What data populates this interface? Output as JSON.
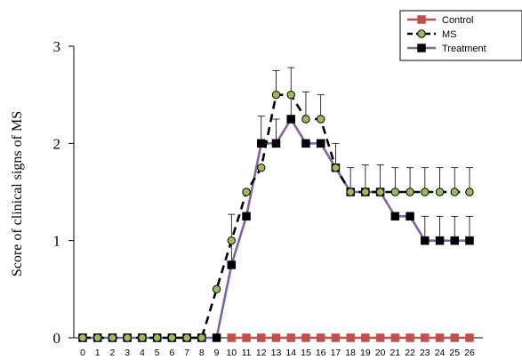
{
  "chart_data": {
    "type": "line",
    "title": "",
    "xlabel": "",
    "ylabel": "Score of clinical signs of MS",
    "xlim": [
      0,
      26
    ],
    "ylim": [
      0,
      3
    ],
    "y_ticks": [
      "0",
      "1",
      "2",
      "3"
    ],
    "x_ticks": [
      "0",
      "1",
      "2",
      "3",
      "4",
      "5",
      "6",
      "7",
      "8",
      "9",
      "10",
      "11",
      "12",
      "13",
      "14",
      "15",
      "16",
      "17",
      "18",
      "19",
      "20",
      "21",
      "22",
      "23",
      "24",
      "25",
      "26"
    ],
    "grid": false,
    "legend_position": "top-right",
    "series": [
      {
        "name": "Control",
        "color": "#c0504d",
        "marker": "square",
        "line_style": "solid",
        "x": [
          10,
          11,
          12,
          13,
          14,
          15,
          16,
          17,
          18,
          19,
          20,
          21,
          22,
          23,
          24,
          25,
          26
        ],
        "y": [
          0,
          0,
          0,
          0,
          0,
          0,
          0,
          0,
          0,
          0,
          0,
          0,
          0,
          0,
          0,
          0,
          0
        ],
        "error": []
      },
      {
        "name": "MS",
        "color": "#000000",
        "marker_fill": "#9bbb59",
        "marker": "circle",
        "line_style": "dashed",
        "x": [
          0,
          1,
          2,
          3,
          4,
          5,
          6,
          7,
          8,
          9,
          10,
          11,
          12,
          13,
          14,
          15,
          16,
          17,
          18,
          19,
          20,
          21,
          22,
          23,
          24,
          25,
          26
        ],
        "y": [
          0,
          0,
          0,
          0,
          0,
          0,
          0,
          0,
          0,
          0.5,
          1,
          1.5,
          1.75,
          2.5,
          2.5,
          2.25,
          2.25,
          1.75,
          1.5,
          1.5,
          1.5,
          1.5,
          1.5,
          1.5,
          1.5,
          1.5,
          1.5
        ],
        "error": [
          0,
          0,
          0,
          0,
          0,
          0,
          0,
          0,
          0,
          0,
          0,
          0,
          0,
          0.25,
          0.28,
          0.28,
          0.25,
          0.25,
          0.25,
          0.28,
          0.28,
          0.25,
          0.25,
          0.25,
          0.25,
          0.25,
          0.25
        ]
      },
      {
        "name": "Treatment",
        "color": "#8064a2",
        "marker_fill": "#000000",
        "marker": "square",
        "line_style": "solid",
        "x": [
          0,
          1,
          2,
          3,
          4,
          5,
          6,
          7,
          8,
          9,
          10,
          11,
          12,
          13,
          14,
          15,
          16,
          17,
          18,
          19,
          20,
          21,
          22,
          23,
          24,
          25,
          26
        ],
        "y": [
          0,
          0,
          0,
          0,
          0,
          0,
          0,
          0,
          0,
          0,
          0.75,
          1.25,
          2,
          2,
          2.25,
          2,
          2,
          1.75,
          1.5,
          1.5,
          1.5,
          1.25,
          1.25,
          1,
          1,
          1,
          1
        ],
        "error": [
          0,
          0,
          0,
          0,
          0,
          0,
          0,
          0,
          0,
          0,
          0.52,
          0,
          0.28,
          0.25,
          0.25,
          0,
          0,
          0,
          0,
          0,
          0,
          0,
          0,
          0.25,
          0.25,
          0.25,
          0.25
        ]
      }
    ]
  }
}
